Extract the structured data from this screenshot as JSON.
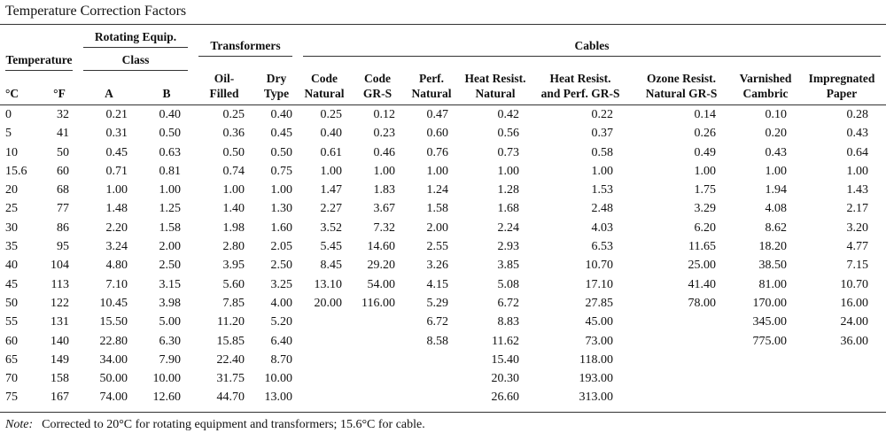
{
  "title": "Temperature Correction Factors",
  "header": {
    "groups": {
      "temperature": "Temperature",
      "rotating": "Rotating Equip.",
      "class": "Class",
      "transformers": "Transformers",
      "cables": "Cables"
    },
    "columns": [
      "°C",
      "°F",
      "A",
      "B",
      "Oil-\nFilled",
      "Dry\nType",
      "Code\nNatural",
      "Code\nGR-S",
      "Perf.\nNatural",
      "Heat Resist.\nNatural",
      "Heat Resist.\nand Perf. GR-S",
      "Ozone Resist.\nNatural GR-S",
      "Varnished\nCambric",
      "Impregnated\nPaper"
    ]
  },
  "table": {
    "rows": [
      [
        "0",
        "32",
        "0.21",
        "0.40",
        "0.25",
        "0.40",
        "0.25",
        "0.12",
        "0.47",
        "0.42",
        "0.22",
        "0.14",
        "0.10",
        "0.28"
      ],
      [
        "5",
        "41",
        "0.31",
        "0.50",
        "0.36",
        "0.45",
        "0.40",
        "0.23",
        "0.60",
        "0.56",
        "0.37",
        "0.26",
        "0.20",
        "0.43"
      ],
      [
        "10",
        "50",
        "0.45",
        "0.63",
        "0.50",
        "0.50",
        "0.61",
        "0.46",
        "0.76",
        "0.73",
        "0.58",
        "0.49",
        "0.43",
        "0.64"
      ],
      [
        "15.6",
        "60",
        "0.71",
        "0.81",
        "0.74",
        "0.75",
        "1.00",
        "1.00",
        "1.00",
        "1.00",
        "1.00",
        "1.00",
        "1.00",
        "1.00"
      ],
      [
        "20",
        "68",
        "1.00",
        "1.00",
        "1.00",
        "1.00",
        "1.47",
        "1.83",
        "1.24",
        "1.28",
        "1.53",
        "1.75",
        "1.94",
        "1.43"
      ],
      [
        "25",
        "77",
        "1.48",
        "1.25",
        "1.40",
        "1.30",
        "2.27",
        "3.67",
        "1.58",
        "1.68",
        "2.48",
        "3.29",
        "4.08",
        "2.17"
      ],
      [
        "30",
        "86",
        "2.20",
        "1.58",
        "1.98",
        "1.60",
        "3.52",
        "7.32",
        "2.00",
        "2.24",
        "4.03",
        "6.20",
        "8.62",
        "3.20"
      ],
      [
        "35",
        "95",
        "3.24",
        "2.00",
        "2.80",
        "2.05",
        "5.45",
        "14.60",
        "2.55",
        "2.93",
        "6.53",
        "11.65",
        "18.20",
        "4.77"
      ],
      [
        "40",
        "104",
        "4.80",
        "2.50",
        "3.95",
        "2.50",
        "8.45",
        "29.20",
        "3.26",
        "3.85",
        "10.70",
        "25.00",
        "38.50",
        "7.15"
      ],
      [
        "45",
        "113",
        "7.10",
        "3.15",
        "5.60",
        "3.25",
        "13.10",
        "54.00",
        "4.15",
        "5.08",
        "17.10",
        "41.40",
        "81.00",
        "10.70"
      ],
      [
        "50",
        "122",
        "10.45",
        "3.98",
        "7.85",
        "4.00",
        "20.00",
        "116.00",
        "5.29",
        "6.72",
        "27.85",
        "78.00",
        "170.00",
        "16.00"
      ],
      [
        "55",
        "131",
        "15.50",
        "5.00",
        "11.20",
        "5.20",
        null,
        null,
        "6.72",
        "8.83",
        "45.00",
        null,
        "345.00",
        "24.00"
      ],
      [
        "60",
        "140",
        "22.80",
        "6.30",
        "15.85",
        "6.40",
        null,
        null,
        "8.58",
        "11.62",
        "73.00",
        null,
        "775.00",
        "36.00"
      ],
      [
        "65",
        "149",
        "34.00",
        "7.90",
        "22.40",
        "8.70",
        null,
        null,
        null,
        "15.40",
        "118.00",
        null,
        null,
        null
      ],
      [
        "70",
        "158",
        "50.00",
        "10.00",
        "31.75",
        "10.00",
        null,
        null,
        null,
        "20.30",
        "193.00",
        null,
        null,
        null
      ],
      [
        "75",
        "167",
        "74.00",
        "12.60",
        "44.70",
        "13.00",
        null,
        null,
        null,
        "26.60",
        "313.00",
        null,
        null,
        null
      ]
    ]
  },
  "note": {
    "label": "Note:",
    "text": "Corrected to 20°C for rotating equipment and transformers; 15.6°C for cable."
  }
}
